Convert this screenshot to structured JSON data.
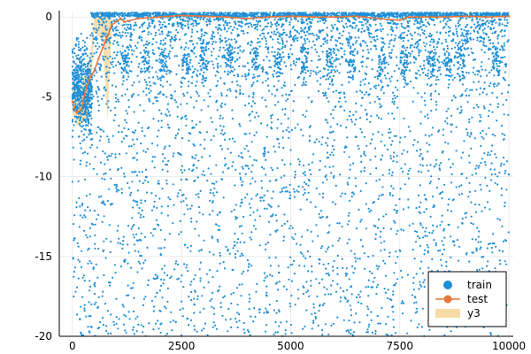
{
  "chart_data": {
    "type": "scatter",
    "title": "",
    "xlabel": "",
    "ylabel": "",
    "xlim": [
      -300,
      10100
    ],
    "ylim": [
      -20,
      0.4
    ],
    "xticks": [
      0,
      2500,
      5000,
      7500,
      10000
    ],
    "yticks": [
      0,
      -5,
      -10,
      -15,
      -20
    ],
    "grid": true,
    "legend_position": "bottom-right",
    "colors": {
      "train": "#1f8fd6",
      "test": "#e3763d",
      "band": "#f7dba5"
    },
    "series": [
      {
        "name": "train",
        "kind": "scatter",
        "x_range": [
          0,
          10000
        ],
        "y_range": [
          -20,
          0.2
        ],
        "clusters": [
          {
            "x": [
              0,
              450
            ],
            "y_center": -4.6,
            "y_spread": 2.4
          }
        ],
        "dense_top_band": {
          "y": 0.1,
          "x_start": 400,
          "x_end": 10000
        },
        "note_values": "approx 6000 points; dense near y=0 above x=400, sparse down to y=-20"
      },
      {
        "name": "test",
        "kind": "line",
        "x": [
          0,
          100,
          200,
          300,
          400,
          500,
          600,
          700,
          800,
          900,
          1000,
          1100,
          1200,
          1500,
          2000,
          2500,
          3000,
          3500,
          4000,
          4500,
          5000,
          5500,
          6000,
          6500,
          7000,
          7500,
          7700,
          8000,
          8500,
          9000,
          9500,
          10000
        ],
        "y": [
          -5.3,
          -6.0,
          -5.8,
          -4.6,
          -3.8,
          -3.4,
          -2.6,
          -1.9,
          -1.2,
          -0.5,
          -0.3,
          -0.1,
          -0.3,
          -0.1,
          0.0,
          0.1,
          0.05,
          0.0,
          -0.1,
          0.0,
          0.05,
          0.0,
          0.0,
          0.05,
          -0.1,
          -0.2,
          0.0,
          0.0,
          0.0,
          0.05,
          0.0,
          0.05
        ]
      },
      {
        "name": "y3",
        "kind": "band",
        "x": [
          0,
          100,
          200,
          300,
          400,
          500,
          600,
          700,
          800,
          900
        ],
        "lower": [
          -6.0,
          -6.8,
          -6.7,
          -6.5,
          -5.8,
          -1.0,
          -1.2,
          -1.6,
          -6.5,
          -1.0
        ],
        "upper": [
          -4.0,
          -4.8,
          -4.4,
          -3.4,
          -2.8,
          0.3,
          0.3,
          0.3,
          0.3,
          0.3
        ]
      }
    ]
  }
}
